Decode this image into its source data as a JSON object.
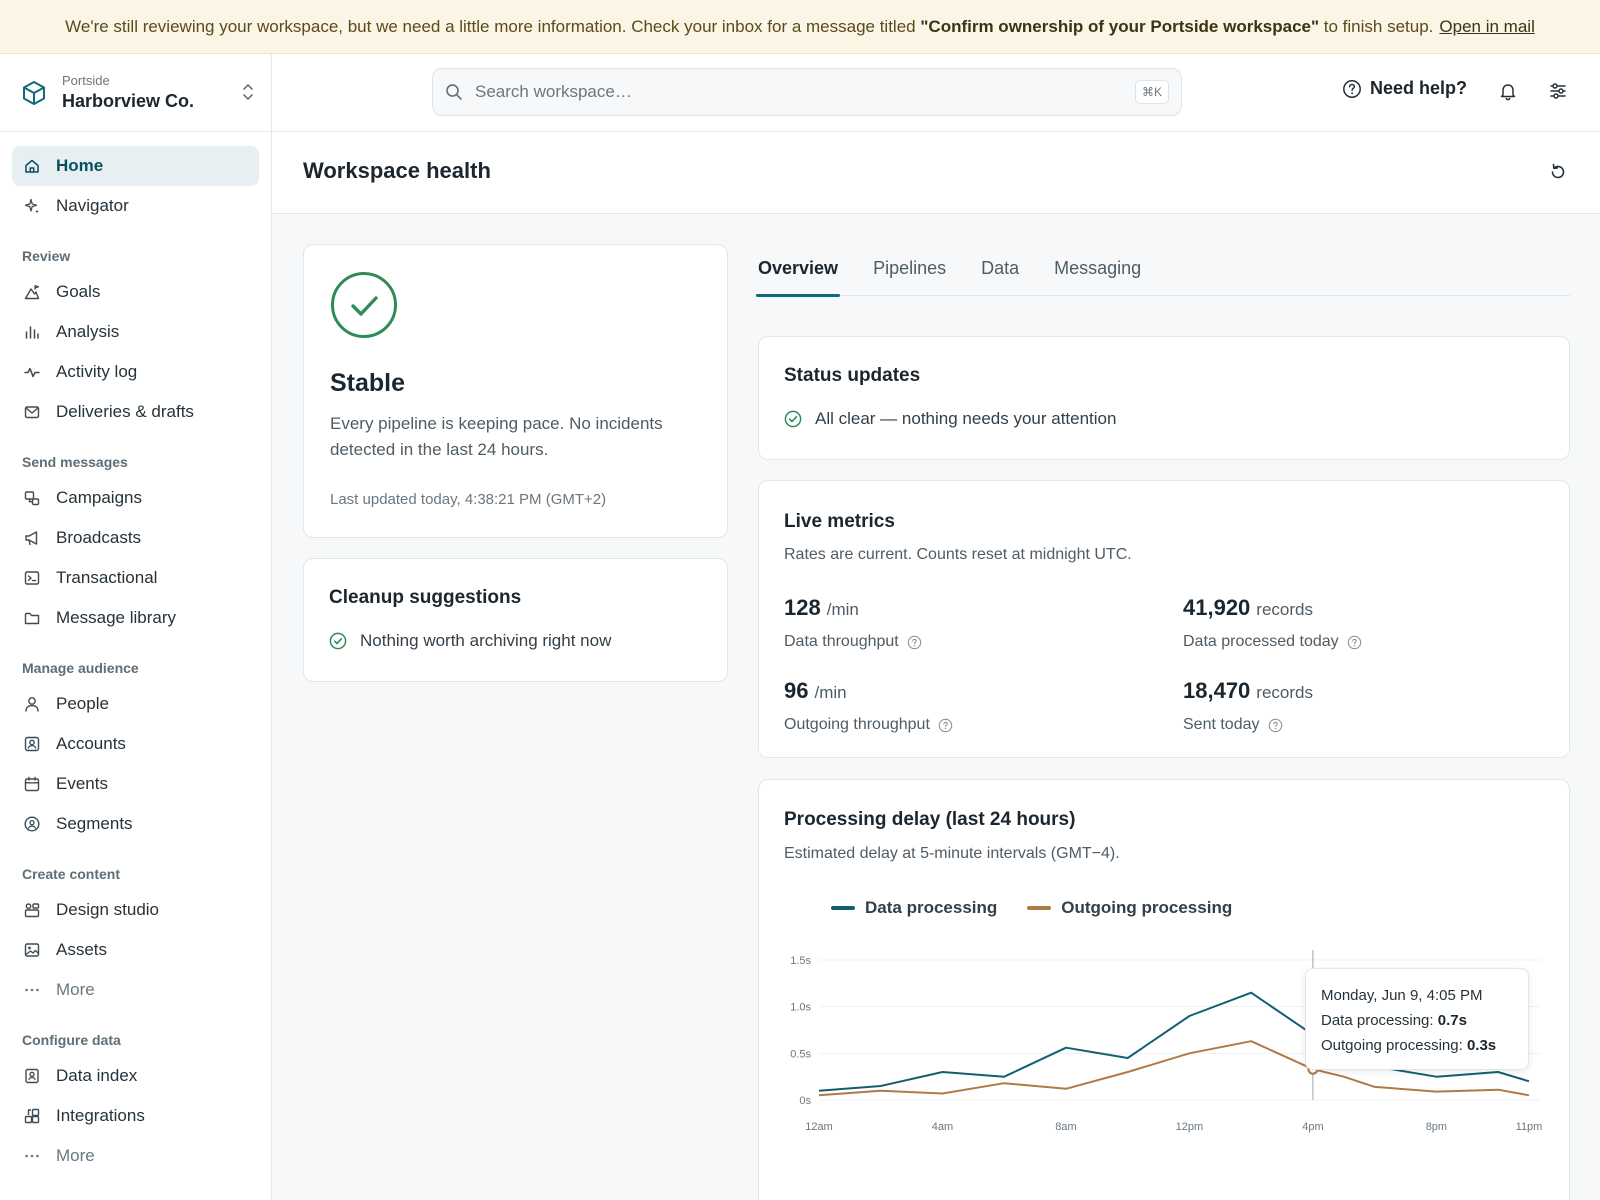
{
  "banner": {
    "text_before": "We're still reviewing your workspace, but we need a little more information. Check your inbox for a message titled",
    "highlight": "\"Confirm ownership of your Portside workspace\"",
    "text_after": "to finish setup.",
    "link": "Open in mail"
  },
  "workspace": {
    "org": "Portside",
    "name": "Harborview Co."
  },
  "search": {
    "placeholder": "Search workspace…",
    "shortcut": "⌘K"
  },
  "header": {
    "help_label": "Need help?"
  },
  "sidebar": {
    "top": [
      {
        "label": "Home",
        "icon": "home-icon",
        "active": true
      },
      {
        "label": "Navigator",
        "icon": "sparkle-icon"
      }
    ],
    "sections": [
      {
        "title": "Review",
        "items": [
          {
            "label": "Goals",
            "icon": "goals-icon"
          },
          {
            "label": "Analysis",
            "icon": "bar-chart-icon"
          },
          {
            "label": "Activity log",
            "icon": "activity-icon"
          },
          {
            "label": "Deliveries & drafts",
            "icon": "mail-icon"
          }
        ]
      },
      {
        "title": "Send messages",
        "items": [
          {
            "label": "Campaigns",
            "icon": "campaign-icon"
          },
          {
            "label": "Broadcasts",
            "icon": "megaphone-icon"
          },
          {
            "label": "Transactional",
            "icon": "terminal-icon"
          },
          {
            "label": "Message library",
            "icon": "folder-icon"
          }
        ]
      },
      {
        "title": "Manage audience",
        "items": [
          {
            "label": "People",
            "icon": "person-icon"
          },
          {
            "label": "Accounts",
            "icon": "account-icon"
          },
          {
            "label": "Events",
            "icon": "calendar-icon"
          },
          {
            "label": "Segments",
            "icon": "segment-icon"
          }
        ]
      },
      {
        "title": "Create content",
        "items": [
          {
            "label": "Design studio",
            "icon": "design-icon"
          },
          {
            "label": "Assets",
            "icon": "image-icon"
          },
          {
            "label": "More",
            "icon": "more-icon",
            "more": true
          }
        ]
      },
      {
        "title": "Configure data",
        "items": [
          {
            "label": "Data index",
            "icon": "index-icon"
          },
          {
            "label": "Integrations",
            "icon": "integrations-icon"
          },
          {
            "label": "More",
            "icon": "more-icon",
            "more": true
          }
        ]
      }
    ]
  },
  "page": {
    "title": "Workspace health"
  },
  "stable_card": {
    "title": "Stable",
    "description": "Every pipeline is keeping pace. No incidents detected in the last 24 hours.",
    "updated": "Last updated today, 4:38:21 PM (GMT+2)"
  },
  "cleanup_card": {
    "title": "Cleanup suggestions",
    "message": "Nothing worth archiving right now"
  },
  "tabs": [
    {
      "label": "Overview",
      "active": true
    },
    {
      "label": "Pipelines"
    },
    {
      "label": "Data"
    },
    {
      "label": "Messaging"
    }
  ],
  "status_card": {
    "title": "Status updates",
    "message": "All clear — nothing needs your attention"
  },
  "metrics_card": {
    "title": "Live metrics",
    "subtitle": "Rates are current. Counts reset at midnight UTC.",
    "metrics": [
      {
        "value": "128",
        "unit": "/min",
        "label": "Data throughput"
      },
      {
        "value": "41,920",
        "unit": "records",
        "label": "Data processed today"
      },
      {
        "value": "96",
        "unit": "/min",
        "label": "Outgoing throughput"
      },
      {
        "value": "18,470",
        "unit": "records",
        "label": "Sent today"
      }
    ]
  },
  "delay_card": {
    "title": "Processing delay (last 24 hours)",
    "subtitle": "Estimated delay at 5-minute intervals (GMT−4).",
    "tooltip": {
      "date": "Monday, Jun 9, 4:05 PM",
      "series1_label": "Data processing:",
      "series1_value": "0.7s",
      "series2_label": "Outgoing processing:",
      "series2_value": "0.3s"
    }
  },
  "colors": {
    "accent": "#0e6a7c",
    "data_series": "#135f72",
    "outgoing_series": "#b07a44",
    "success": "#2e8b57"
  },
  "chart_data": {
    "type": "line",
    "x": [
      0,
      2,
      4,
      6,
      8,
      10,
      12,
      14,
      16,
      17,
      18,
      20,
      22,
      23
    ],
    "x_tick_labels": [
      "12am",
      "4am",
      "8am",
      "12pm",
      "4pm",
      "8pm",
      "11pm"
    ],
    "x_tick_positions": [
      0,
      4,
      8,
      12,
      16,
      20,
      23
    ],
    "y_tick_labels": [
      "0s",
      "0.5s",
      "1.0s",
      "1.5s"
    ],
    "y_tick_values": [
      0,
      0.5,
      1.0,
      1.5
    ],
    "ylim": [
      0,
      1.5
    ],
    "xlim": [
      0,
      23
    ],
    "series": [
      {
        "name": "Data processing",
        "color": "#135f72",
        "values": [
          0.1,
          0.15,
          0.3,
          0.25,
          0.56,
          0.45,
          0.9,
          1.15,
          0.7,
          0.55,
          0.36,
          0.25,
          0.3,
          0.2
        ]
      },
      {
        "name": "Outgoing processing",
        "color": "#b07a44",
        "values": [
          0.05,
          0.1,
          0.07,
          0.18,
          0.12,
          0.3,
          0.5,
          0.63,
          0.33,
          0.25,
          0.14,
          0.09,
          0.11,
          0.05
        ]
      }
    ],
    "highlight_x": 16,
    "legend": "top-left",
    "grid": true
  }
}
